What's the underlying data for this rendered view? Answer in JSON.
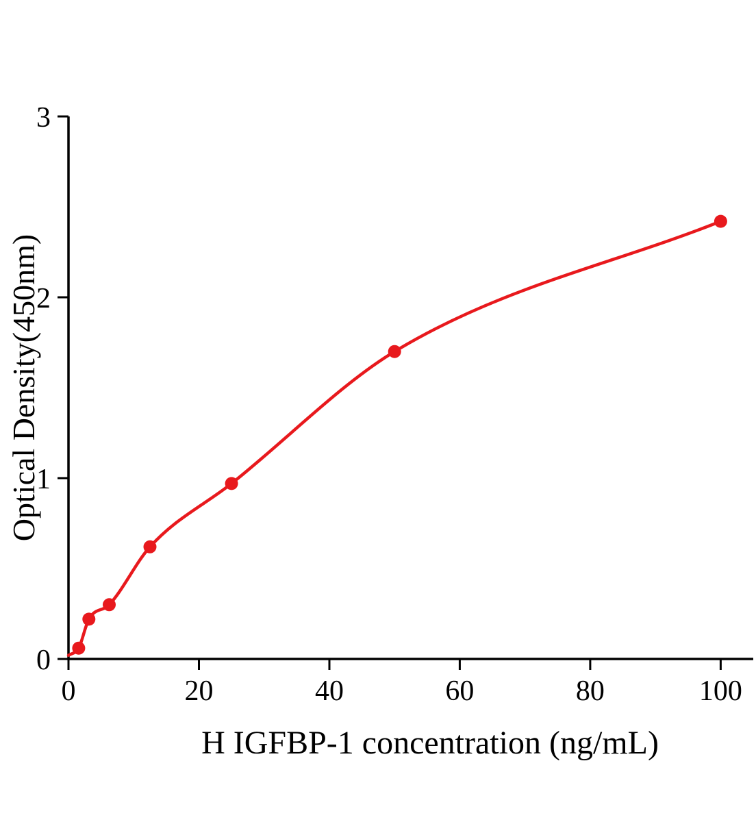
{
  "page": {
    "background": "#ffffff"
  },
  "chart_data": {
    "type": "scatter",
    "title": "",
    "xlabel": "H IGFBP-1 concentration (ng/mL)",
    "ylabel": "Optical Density(450nm)",
    "x": [
      1.56,
      3.13,
      6.25,
      12.5,
      25,
      50,
      100
    ],
    "y": [
      0.06,
      0.22,
      0.3,
      0.62,
      0.97,
      1.7,
      2.42
    ],
    "curve_start": [
      0,
      0.02
    ],
    "xlim": [
      0,
      105
    ],
    "ylim": [
      0,
      3
    ],
    "xticks": [
      0,
      20,
      40,
      60,
      80,
      100
    ],
    "yticks": [
      0,
      1,
      2,
      3
    ],
    "grid": false,
    "legend": null,
    "fit": "smooth saturating curve through points",
    "point_color": "#e8191d",
    "line_color": "#e8191d",
    "axis_color": "#000000",
    "marker_radius": 9.5
  }
}
